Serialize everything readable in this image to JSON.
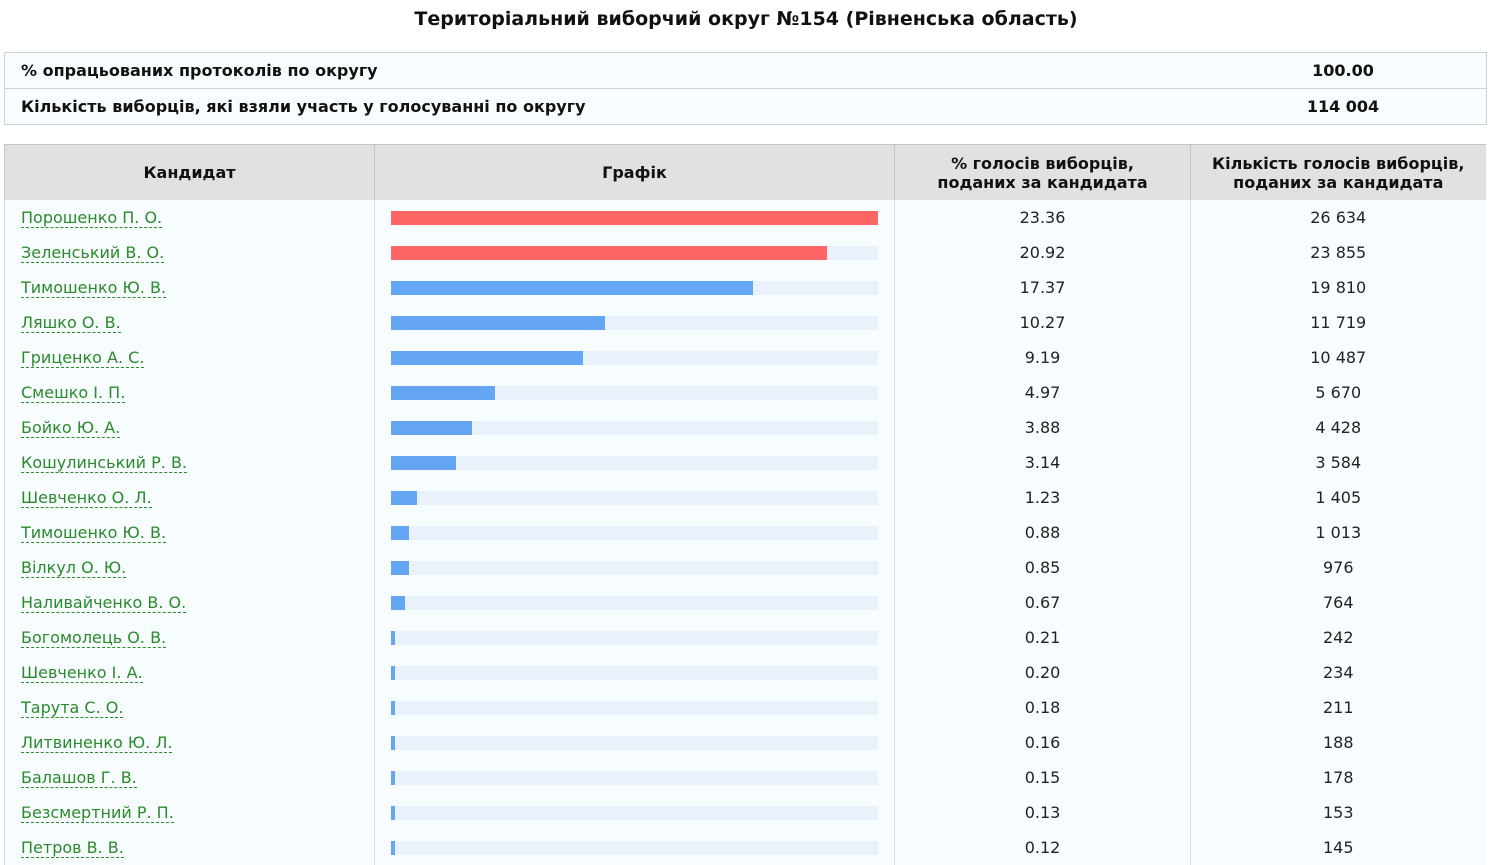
{
  "title": "Територіальний виборчий округ №154 (Рівненська область)",
  "summary": [
    {
      "label": "% опрацьованих протоколів по округу",
      "value": "100.00"
    },
    {
      "label": "Кількість виборців, які взяли участь у голосуванні по округу",
      "value": "114 004"
    }
  ],
  "table": {
    "headers": {
      "candidate": "Кандидат",
      "chart": "Графік",
      "percent_line1": "% голосів виборців,",
      "percent_line2": "поданих за кандидата",
      "votes_line1": "Кількість голосів виборців,",
      "votes_line2": "поданих за кандидата"
    },
    "bar_max_percent": 23.36,
    "colors": {
      "leader": "#fe6565",
      "other": "#64a5f4",
      "track": "#e9f1fb"
    },
    "rows": [
      {
        "name": "Порошенко П. О.",
        "percent": "23.36",
        "votes": "26 634",
        "leader": true
      },
      {
        "name": "Зеленський В. О.",
        "percent": "20.92",
        "votes": "23 855",
        "leader": true
      },
      {
        "name": "Тимошенко Ю. В.",
        "percent": "17.37",
        "votes": "19 810",
        "leader": false
      },
      {
        "name": "Ляшко О. В.",
        "percent": "10.27",
        "votes": "11 719",
        "leader": false
      },
      {
        "name": "Гриценко А. С.",
        "percent": "9.19",
        "votes": "10 487",
        "leader": false
      },
      {
        "name": "Смешко І. П.",
        "percent": "4.97",
        "votes": "5 670",
        "leader": false
      },
      {
        "name": "Бойко Ю. А.",
        "percent": "3.88",
        "votes": "4 428",
        "leader": false
      },
      {
        "name": "Кошулинський Р. В.",
        "percent": "3.14",
        "votes": "3 584",
        "leader": false
      },
      {
        "name": "Шевченко О. Л.",
        "percent": "1.23",
        "votes": "1 405",
        "leader": false
      },
      {
        "name": "Тимошенко Ю. В.",
        "percent": "0.88",
        "votes": "1 013",
        "leader": false
      },
      {
        "name": "Вілкул О. Ю.",
        "percent": "0.85",
        "votes": "976",
        "leader": false
      },
      {
        "name": "Наливайченко В. О.",
        "percent": "0.67",
        "votes": "764",
        "leader": false
      },
      {
        "name": "Богомолець О. В.",
        "percent": "0.21",
        "votes": "242",
        "leader": false
      },
      {
        "name": "Шевченко І. А.",
        "percent": "0.20",
        "votes": "234",
        "leader": false
      },
      {
        "name": "Тарута С. О.",
        "percent": "0.18",
        "votes": "211",
        "leader": false
      },
      {
        "name": "Литвиненко Ю. Л.",
        "percent": "0.16",
        "votes": "188",
        "leader": false
      },
      {
        "name": "Балашов Г. В.",
        "percent": "0.15",
        "votes": "178",
        "leader": false
      },
      {
        "name": "Безсмертний Р. П.",
        "percent": "0.13",
        "votes": "153",
        "leader": false
      },
      {
        "name": "Петров В. В.",
        "percent": "0.12",
        "votes": "145",
        "leader": false
      }
    ]
  }
}
